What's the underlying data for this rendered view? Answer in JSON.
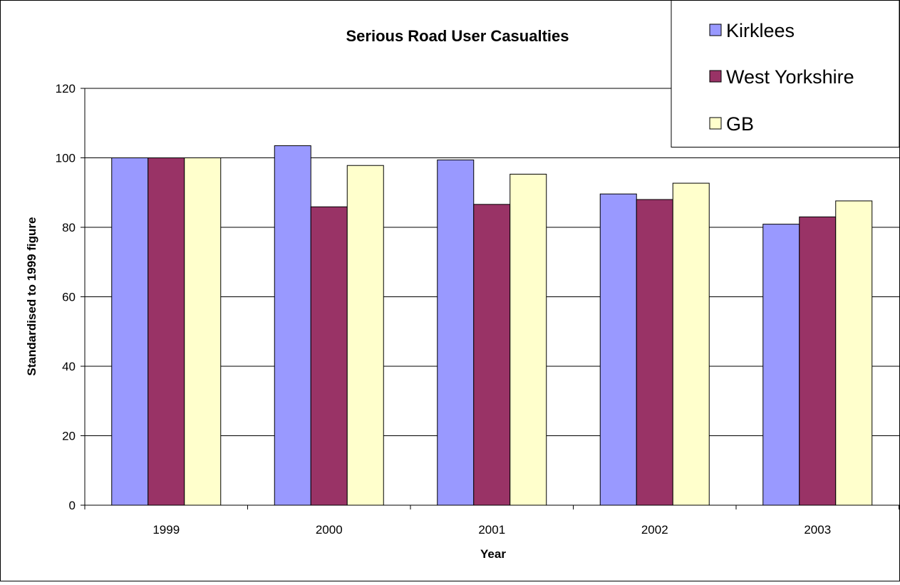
{
  "chart_data": {
    "type": "bar",
    "title": "Serious Road User Casualties",
    "xlabel": "Year",
    "ylabel": "Standardised to 1999 figure",
    "categories": [
      "1999",
      "2000",
      "2001",
      "2002",
      "2003"
    ],
    "series": [
      {
        "name": "Kirklees",
        "color": "#9999ff",
        "values": [
          100,
          103.5,
          99.4,
          89.6,
          80.9
        ]
      },
      {
        "name": "West Yorkshire",
        "color": "#993366",
        "values": [
          100,
          85.9,
          86.6,
          88.0,
          83.0
        ]
      },
      {
        "name": "GB",
        "color": "#ffffcc",
        "values": [
          100,
          97.8,
          95.3,
          92.7,
          87.6
        ]
      }
    ],
    "ylim": [
      0,
      120
    ],
    "yticks": [
      0,
      20,
      40,
      60,
      80,
      100,
      120
    ],
    "grid": true,
    "legend_position": "top-right"
  }
}
